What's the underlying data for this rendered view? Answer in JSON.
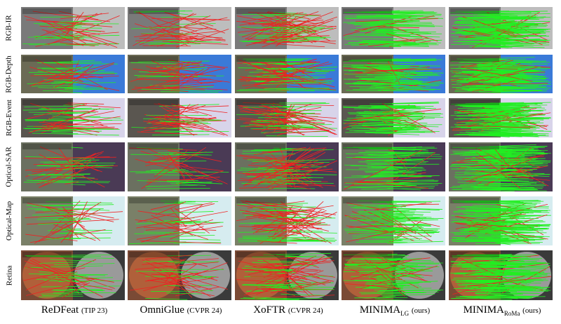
{
  "figure": {
    "rows": [
      "RGB-IR",
      "RGB-Depth",
      "RGB-Event",
      "Optical-SAR",
      "Optical-Map",
      "Retina"
    ],
    "columns": [
      {
        "name": "ReDFeat",
        "venue": "(TIP 23)"
      },
      {
        "name": "OmniGlue",
        "venue": "(CVPR 24)"
      },
      {
        "name": "XoFTR",
        "venue": "(CVPR 24)"
      },
      {
        "name": "MINIMA",
        "sub": "LG",
        "venue": "(ours)"
      },
      {
        "name": "MINIMA",
        "sub": "RoMa",
        "venue": "(ours)"
      }
    ]
  }
}
